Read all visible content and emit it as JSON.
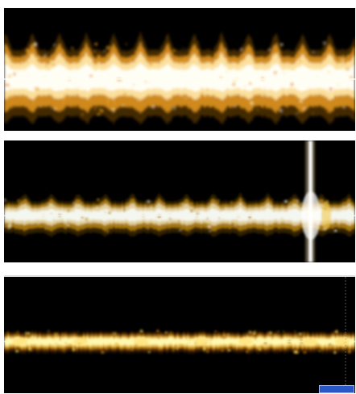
{
  "panels": [
    {
      "id": "top",
      "pattern": "strong-periodic-bursts",
      "burst_count": 13,
      "colors": {
        "core": "#fffef5",
        "mid": "#ffe9a8",
        "edge": "#e89a1e",
        "dim": "#7a4a08"
      }
    },
    {
      "id": "middle",
      "pattern": "weak-periodic-bursts-with-transient",
      "burst_count": 13,
      "has_transient": true,
      "colors": {
        "core": "#f4f6f0",
        "mid": "#e8d8a8",
        "edge": "#b8860b",
        "dim": "#5a3a06"
      }
    },
    {
      "id": "bottom",
      "pattern": "noisy-band-no-bursts",
      "burst_count": 0,
      "has_corner_widget": true,
      "colors": {
        "core": "#fff8b0",
        "mid": "#f2c94c",
        "edge": "#b06a0a",
        "dim": "#4a2a04"
      }
    }
  ]
}
